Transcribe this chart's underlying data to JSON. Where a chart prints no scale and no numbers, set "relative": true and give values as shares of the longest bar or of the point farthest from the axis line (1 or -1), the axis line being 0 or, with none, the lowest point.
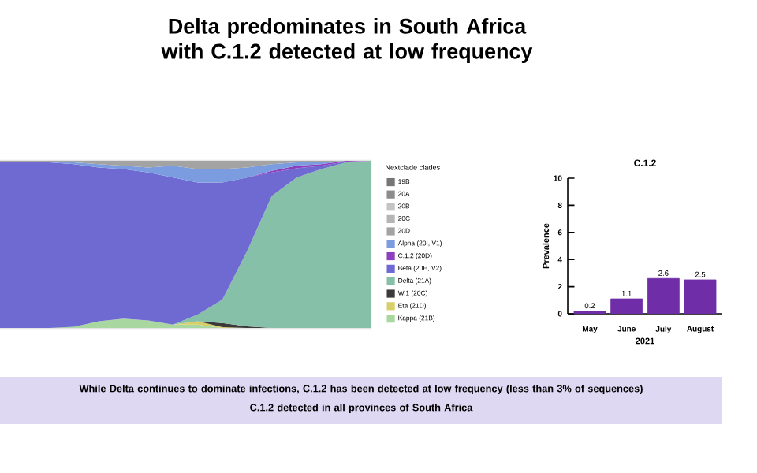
{
  "chart_data": [
    {
      "type": "area",
      "title": "Delta predominates in South Africa with C.1.2 detected at low frequency",
      "relative": true,
      "stacked": true,
      "legend": "right",
      "legend_title": "Nextclade clades",
      "annotations": [
        "While Delta continues to dominate infections, C.1.2 has been detected at low frequency (less than 3% of sequences)",
        "C.1.2 detected in all provinces of South Africa"
      ],
      "categories": [
        null,
        null,
        null,
        null,
        null,
        null,
        null,
        null,
        null,
        null,
        null,
        null,
        null,
        null,
        null,
        null
      ],
      "series": [
        {
          "name": "Kappa (21B)",
          "color": "#a8d8a0",
          "values": [
            null,
            null,
            0,
            0.007,
            0.04,
            0.055,
            0.045,
            0.02,
            0.02,
            0,
            null,
            null,
            null,
            null,
            null,
            null
          ]
        },
        {
          "name": "Eta (21D)",
          "color": "#d9cf6a",
          "values": [
            null,
            null,
            null,
            null,
            null,
            null,
            null,
            0,
            0.02,
            0.005,
            0,
            null,
            null,
            null,
            null,
            null
          ]
        },
        {
          "name": "W.1 (20C)",
          "color": "#3a3a3a",
          "values": [
            null,
            null,
            null,
            null,
            null,
            null,
            null,
            null,
            0,
            0.025,
            0.01,
            0,
            null,
            null,
            null,
            null
          ]
        },
        {
          "name": "Delta (21A)",
          "color": "#86c0a8",
          "values": [
            null,
            null,
            null,
            null,
            null,
            null,
            null,
            0,
            0.04,
            0.14,
            0.45,
            0.79,
            0.9,
            0.95,
            0.99,
            1.0
          ]
        },
        {
          "name": "Beta (20H, V2)",
          "color": "#6e6ad2",
          "values": [
            0.99,
            0.99,
            0.99,
            0.973,
            0.92,
            0.895,
            0.885,
            0.88,
            0.79,
            0.7,
            0.44,
            0.14,
            0.055,
            0.02,
            0.005,
            null
          ]
        },
        {
          "name": "C.1.2 (20D)",
          "color": "#8e3fbf",
          "values": [
            null,
            null,
            null,
            null,
            null,
            null,
            null,
            null,
            null,
            null,
            0,
            0.01,
            0.015,
            0.01,
            0.005,
            0
          ]
        },
        {
          "name": "Alpha (20I, V1)",
          "color": "#7b9de0",
          "values": [
            null,
            null,
            0,
            0.01,
            0.02,
            0.02,
            0.03,
            0.07,
            0.08,
            0.08,
            0.06,
            0.04,
            0.02,
            0.01,
            0,
            null
          ]
        },
        {
          "name": "20D",
          "color": "#a3a3a3",
          "values": [
            0.01,
            0.01,
            0.01,
            0.01,
            0.02,
            0.03,
            0.04,
            0.03,
            0.05,
            0.05,
            0.04,
            0.02,
            0.01,
            0.01,
            0,
            null
          ]
        },
        {
          "name": "20C",
          "color": "#b5b5b5",
          "values": [
            null,
            null,
            null,
            null,
            null,
            null,
            null,
            null,
            null,
            null,
            null,
            null,
            null,
            null,
            null,
            null
          ]
        },
        {
          "name": "20B",
          "color": "#c4c4c4",
          "values": [
            null,
            null,
            null,
            null,
            null,
            null,
            null,
            null,
            null,
            null,
            null,
            null,
            null,
            null,
            null,
            null
          ]
        },
        {
          "name": "20A",
          "color": "#8c8c8c",
          "values": [
            null,
            null,
            null,
            null,
            null,
            null,
            null,
            null,
            null,
            null,
            null,
            null,
            null,
            null,
            null,
            null
          ]
        },
        {
          "name": "19B",
          "color": "#767676",
          "values": [
            null,
            null,
            null,
            null,
            null,
            null,
            null,
            null,
            null,
            null,
            null,
            null,
            null,
            null,
            null,
            null
          ]
        }
      ]
    },
    {
      "type": "bar",
      "title": "C.1.2",
      "xlabel": "2021",
      "ylabel": "Prevalence",
      "categories": [
        "May",
        "June",
        "July",
        "August"
      ],
      "values": [
        0.2,
        1.1,
        2.6,
        2.5
      ],
      "color": "#6f2da8",
      "data_labels": true,
      "ylim": [
        0,
        10
      ],
      "yticks": [
        0,
        2,
        4,
        6,
        8,
        10
      ]
    }
  ]
}
